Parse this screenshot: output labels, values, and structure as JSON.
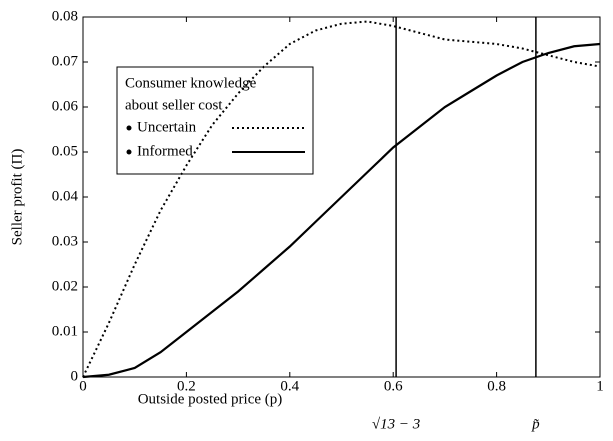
{
  "chart_data": {
    "type": "line",
    "xlabel": "Outside posted price (p)",
    "ylabel": "Seller profit (Π)",
    "x": [
      0,
      0.05,
      0.1,
      0.15,
      0.2,
      0.25,
      0.3,
      0.35,
      0.4,
      0.45,
      0.5,
      0.55,
      0.6,
      0.65,
      0.7,
      0.75,
      0.8,
      0.85,
      0.9,
      0.95,
      1.0
    ],
    "series": [
      {
        "name": "Uncertain",
        "color": "#000000",
        "dash": "dotted",
        "values": [
          0,
          0.012,
          0.025,
          0.037,
          0.047,
          0.056,
          0.063,
          0.069,
          0.074,
          0.077,
          0.0785,
          0.079,
          0.078,
          0.0765,
          0.075,
          0.0745,
          0.074,
          0.073,
          0.0715,
          0.07,
          0.069
        ]
      },
      {
        "name": "Informed",
        "color": "#000000",
        "dash": "solid",
        "values": [
          0,
          0.0005,
          0.002,
          0.0055,
          0.01,
          0.0145,
          0.019,
          0.024,
          0.029,
          0.0345,
          0.04,
          0.0455,
          0.051,
          0.0555,
          0.06,
          0.0635,
          0.067,
          0.07,
          0.072,
          0.0735,
          0.074
        ]
      }
    ],
    "legend_title": [
      "Consumer knowledge",
      "about seller cost"
    ],
    "annotations": [
      {
        "x": 0.6056,
        "label": "√13 − 3"
      },
      {
        "x": 0.876,
        "label": "p̃"
      }
    ],
    "xlim": [
      0,
      1
    ],
    "xticks": [
      0,
      0.2,
      0.4,
      0.6,
      0.8,
      1
    ],
    "ylim": [
      0,
      0.08
    ],
    "yticks": [
      0,
      0.01,
      0.02,
      0.03,
      0.04,
      0.05,
      0.06,
      0.07,
      0.08
    ],
    "grid": false
  }
}
